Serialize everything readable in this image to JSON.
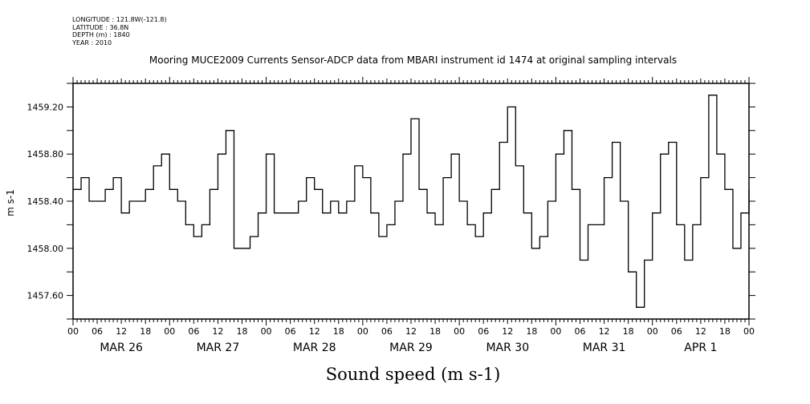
{
  "header": {
    "longitude": "LONGITUDE : 121.8W(-121.8)",
    "latitude": "LATITUDE : 36.8N",
    "depth": "DEPTH (m) : 1840",
    "year": "YEAR : 2010"
  },
  "chart_data": {
    "type": "line",
    "title": "Mooring MUCE2009 Currents Sensor-ADCP data from MBARI instrument id 1474 at original sampling intervals",
    "xlabel": "Sound speed (m s-1)",
    "ylabel": "m s-1",
    "ylim": [
      1457.4,
      1459.4
    ],
    "yticks": [
      "1457.60",
      "1458.00",
      "1458.40",
      "1458.80",
      "1459.20"
    ],
    "ytick_values": [
      1457.6,
      1458.0,
      1458.4,
      1458.8,
      1459.2
    ],
    "xlim_hours": [
      0,
      168
    ],
    "hour_tick_labels": [
      "00",
      "06",
      "12",
      "18"
    ],
    "day_labels": [
      "MAR 26",
      "MAR 27",
      "MAR 28",
      "MAR 29",
      "MAR 30",
      "MAR 31",
      "APR  1"
    ],
    "x_step_hours": 2,
    "series": [
      {
        "name": "Sound speed",
        "values": [
          1458.5,
          1458.6,
          1458.4,
          1458.4,
          1458.5,
          1458.6,
          1458.3,
          1458.4,
          1458.4,
          1458.5,
          1458.7,
          1458.8,
          1458.5,
          1458.4,
          1458.2,
          1458.1,
          1458.2,
          1458.5,
          1458.8,
          1459.0,
          1458.0,
          1458.0,
          1458.1,
          1458.3,
          1458.8,
          1458.3,
          1458.3,
          1458.3,
          1458.4,
          1458.6,
          1458.5,
          1458.3,
          1458.4,
          1458.3,
          1458.4,
          1458.7,
          1458.6,
          1458.3,
          1458.1,
          1458.2,
          1458.4,
          1458.8,
          1459.1,
          1458.5,
          1458.3,
          1458.2,
          1458.6,
          1458.8,
          1458.4,
          1458.2,
          1458.1,
          1458.3,
          1458.5,
          1458.9,
          1459.2,
          1458.7,
          1458.3,
          1458.0,
          1458.1,
          1458.4,
          1458.8,
          1459.0,
          1458.5,
          1457.9,
          1458.2,
          1458.2,
          1458.6,
          1458.9,
          1458.4,
          1457.8,
          1457.5,
          1457.9,
          1458.3,
          1458.8,
          1458.9,
          1458.2,
          1457.9,
          1458.2,
          1458.6,
          1459.3,
          1458.8,
          1458.5,
          1458.0,
          1458.3,
          1458.5
        ]
      }
    ]
  }
}
